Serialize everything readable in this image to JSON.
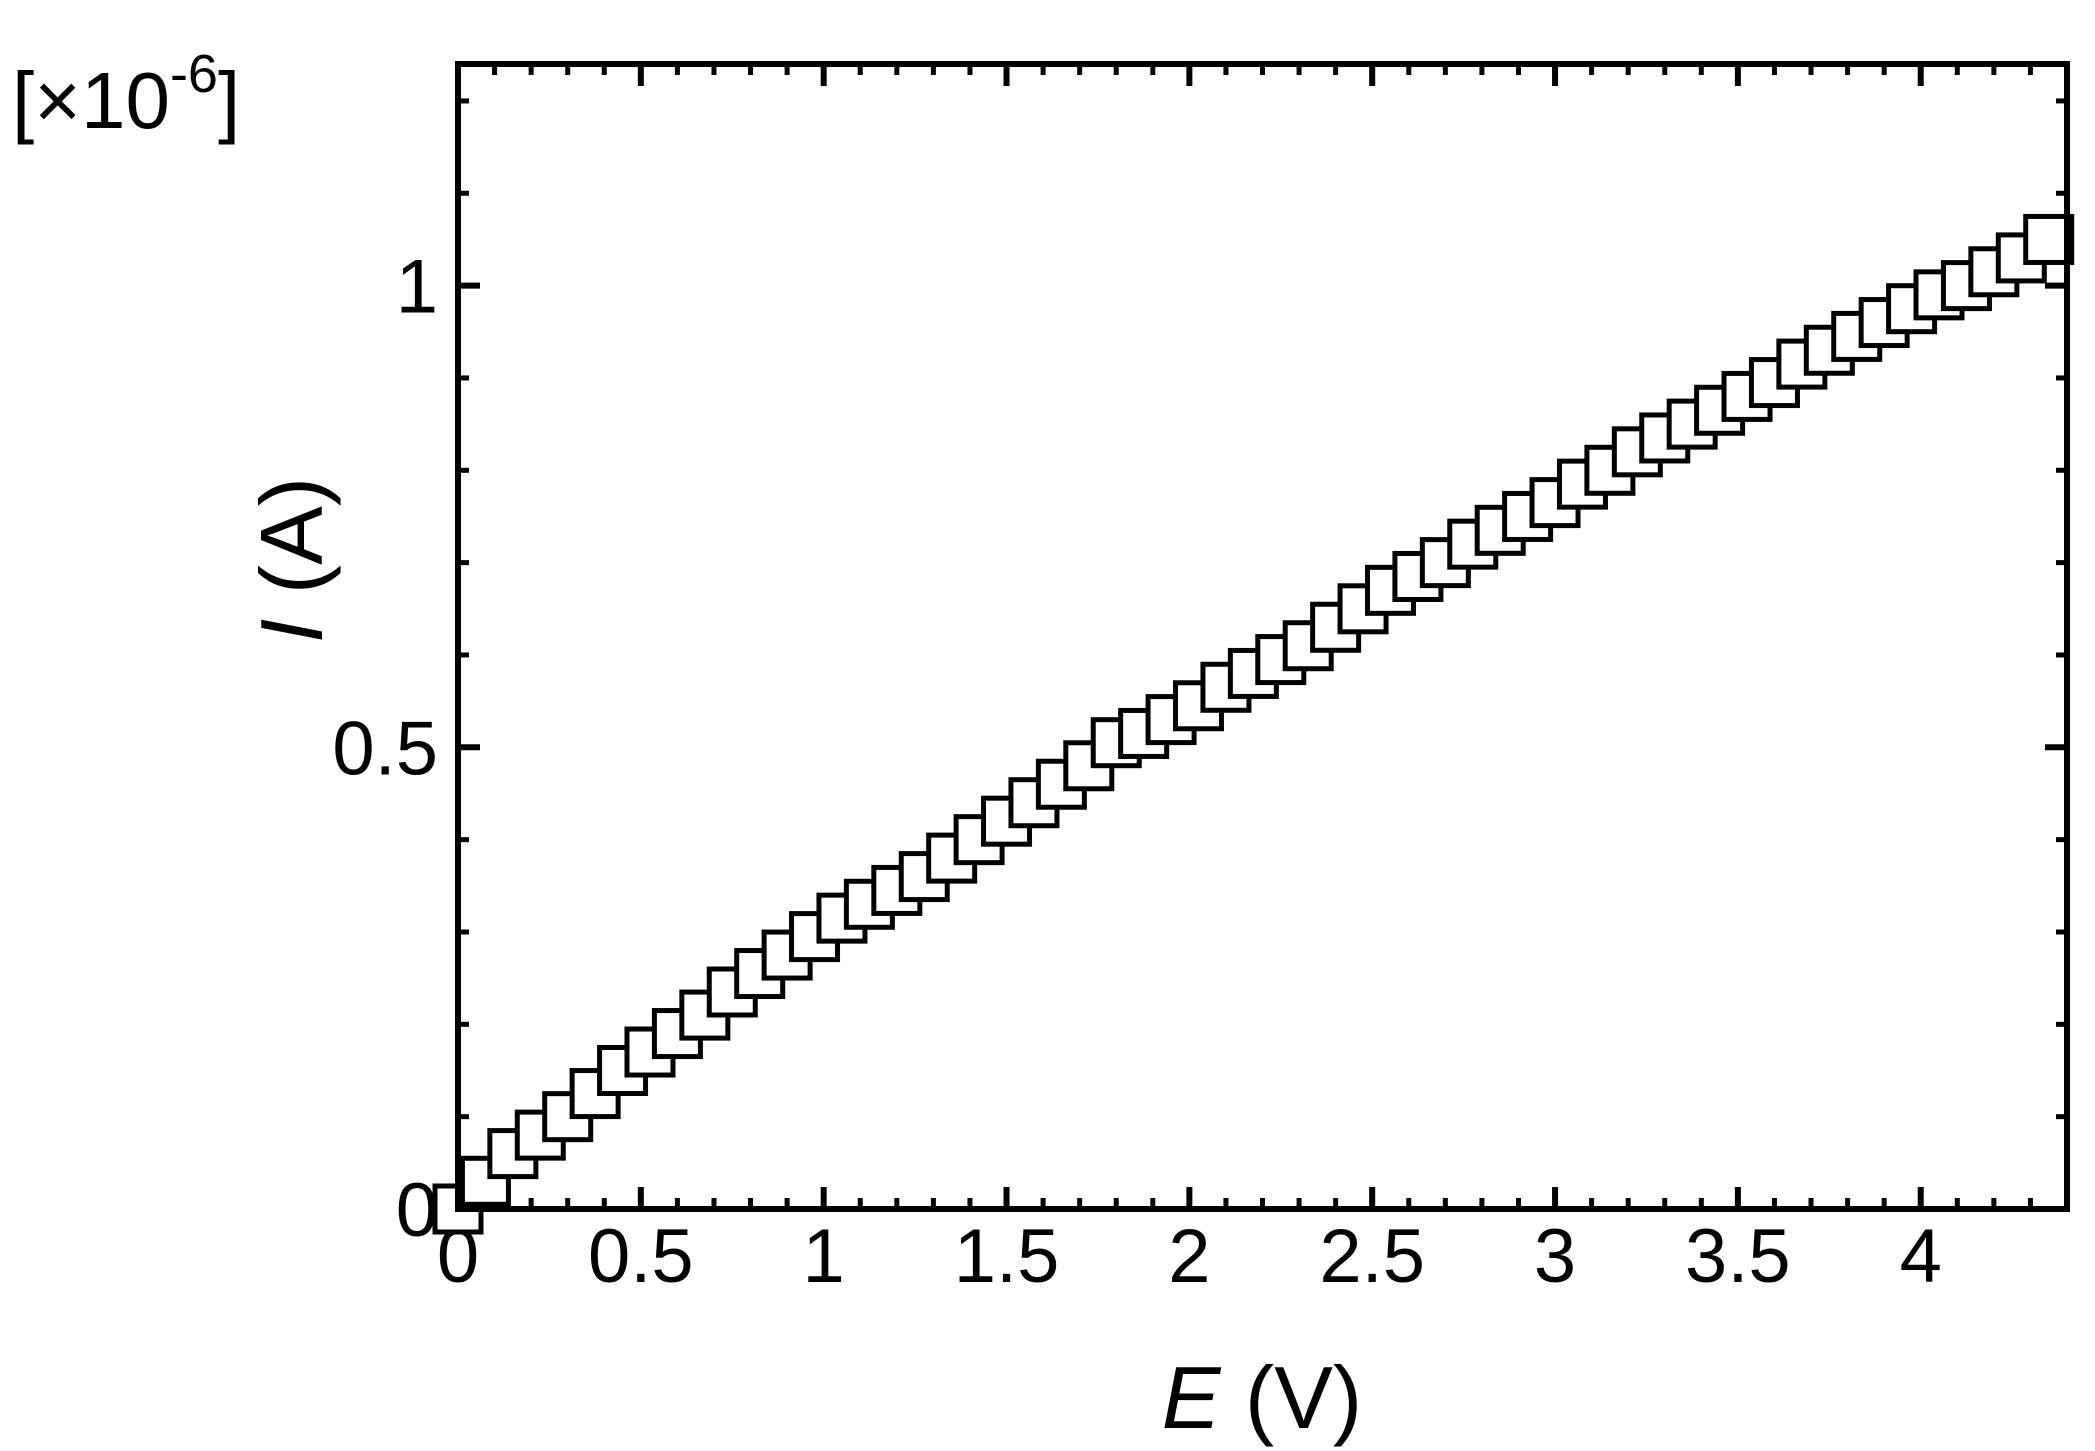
{
  "chart_data": {
    "type": "scatter",
    "xlabel_var": "E",
    "xlabel_unit": "(V)",
    "ylabel_var": "I",
    "ylabel_unit": "(A)",
    "y_multiplier": {
      "prefix": "[×10",
      "exponent": "-6",
      "suffix": "]"
    },
    "xlim": [
      0,
      4.4
    ],
    "ylim": [
      0,
      1.24
    ],
    "x_ticks": [
      0,
      0.5,
      1,
      1.5,
      2,
      2.5,
      3,
      3.5,
      4
    ],
    "x_tick_labels": [
      "0",
      "0.5",
      "1",
      "1.5",
      "2",
      "2.5",
      "3",
      "3.5",
      "4"
    ],
    "y_ticks": [
      0,
      0.5,
      1
    ],
    "y_tick_labels": [
      "0",
      "0.5",
      "1"
    ],
    "x_minor_step": 0.1,
    "y_minor_step": 0.1,
    "marker": "open-square",
    "grid": false,
    "series": [
      {
        "x": [
          0,
          0.075,
          0.15,
          0.225,
          0.3,
          0.375,
          0.45,
          0.525,
          0.6,
          0.675,
          0.75,
          0.825,
          0.9,
          0.975,
          1.05,
          1.125,
          1.2,
          1.275,
          1.35,
          1.425,
          1.5,
          1.575,
          1.65,
          1.725,
          1.8,
          1.875,
          1.95,
          2.025,
          2.1,
          2.175,
          2.25,
          2.325,
          2.4,
          2.475,
          2.55,
          2.625,
          2.7,
          2.775,
          2.85,
          2.925,
          3.0,
          3.075,
          3.15,
          3.225,
          3.3,
          3.375,
          3.45,
          3.525,
          3.6,
          3.675,
          3.75,
          3.825,
          3.9,
          3.975,
          4.05,
          4.125,
          4.2,
          4.275,
          4.35
        ],
        "y": [
          0.0,
          0.03,
          0.06,
          0.08,
          0.1,
          0.125,
          0.15,
          0.17,
          0.19,
          0.21,
          0.235,
          0.255,
          0.275,
          0.295,
          0.315,
          0.33,
          0.345,
          0.36,
          0.38,
          0.4,
          0.42,
          0.44,
          0.46,
          0.48,
          0.505,
          0.515,
          0.53,
          0.545,
          0.565,
          0.58,
          0.595,
          0.61,
          0.63,
          0.65,
          0.67,
          0.685,
          0.7,
          0.72,
          0.735,
          0.75,
          0.765,
          0.785,
          0.8,
          0.82,
          0.835,
          0.85,
          0.865,
          0.88,
          0.895,
          0.915,
          0.93,
          0.945,
          0.96,
          0.975,
          0.99,
          1.0,
          1.015,
          1.03,
          1.05
        ]
      }
    ]
  }
}
